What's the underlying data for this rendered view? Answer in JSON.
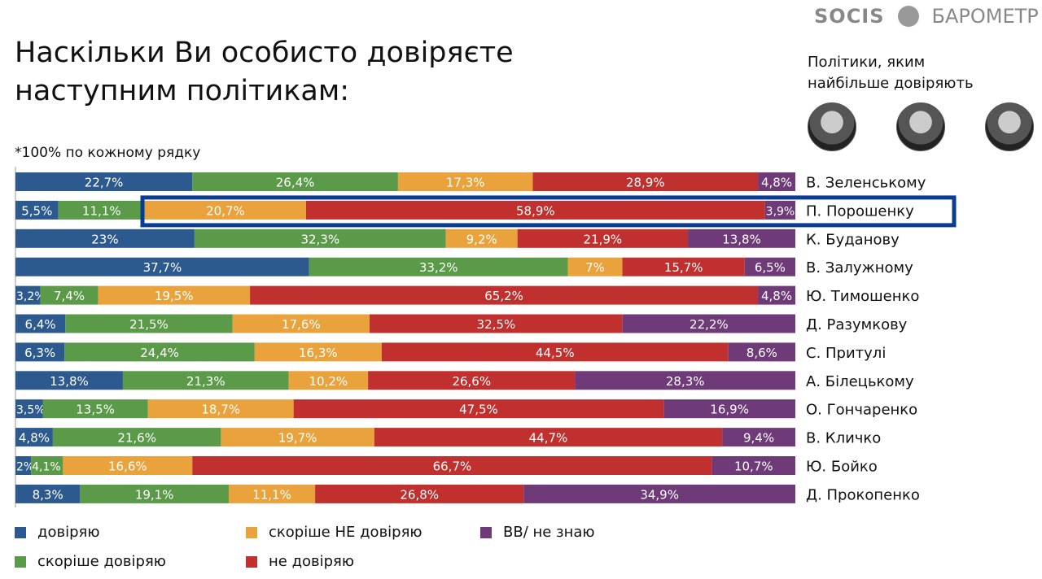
{
  "header": {
    "title": "Наскільки Ви особисто довіряєте наступним політикам:",
    "note": "*100% по кожному рядку",
    "logo_left": "SOCIS",
    "logo_right": "БАРОМЕТР"
  },
  "sidebar": {
    "title": "Політики, яким найбільше довіряють",
    "avatars": [
      "portrait-1",
      "portrait-2",
      "portrait-3"
    ]
  },
  "colors": {
    "trust": "#2d5a8e",
    "rather_trust": "#5a9a48",
    "rather_not": "#eaa33c",
    "not_trust": "#c0302f",
    "dk": "#6e3a78",
    "highlight": "#0a3d91"
  },
  "chart_data": {
    "type": "bar",
    "orientation": "horizontal-stacked-100",
    "categories": [
      "В. Зеленському",
      "П. Порошенку",
      "К. Буданову",
      "В. Залужному",
      "Ю. Тимошенко",
      "Д. Разумкову",
      "С. Притулі",
      "А. Білецькому",
      "О. Гончаренко",
      "В. Кличко",
      "Ю. Бойко",
      "Д. Прокопенко"
    ],
    "highlighted_category": "П. Порошенку",
    "series": [
      {
        "name": "довіряю",
        "values": [
          22.7,
          5.5,
          23,
          37.7,
          3.2,
          6.4,
          6.3,
          13.8,
          3.5,
          4.8,
          2,
          8.3
        ],
        "labels": [
          "22,7%",
          "5,5%",
          "23%",
          "37,7%",
          "3,2%",
          "6,4%",
          "6,3%",
          "13,8%",
          "3,5%",
          "4,8%",
          "2%",
          "8,3%"
        ]
      },
      {
        "name": "скоріше довіряю",
        "values": [
          26.4,
          11.1,
          32.3,
          33.2,
          7.4,
          21.5,
          24.4,
          21.3,
          13.5,
          21.6,
          4.1,
          19.1
        ],
        "labels": [
          "26,4%",
          "11,1%",
          "32,3%",
          "33,2%",
          "7,4%",
          "21,5%",
          "24,4%",
          "21,3%",
          "13,5%",
          "21,6%",
          "4,1%",
          "19,1%"
        ]
      },
      {
        "name": "скоріше НЕ довіряю",
        "values": [
          17.3,
          20.7,
          9.2,
          7,
          19.5,
          17.6,
          16.3,
          10.2,
          18.7,
          19.7,
          16.6,
          11.1
        ],
        "labels": [
          "17,3%",
          "20,7%",
          "9,2%",
          "7%",
          "19,5%",
          "17,6%",
          "16,3%",
          "10,2%",
          "18,7%",
          "19,7%",
          "16,6%",
          "11,1%"
        ]
      },
      {
        "name": "не довіряю",
        "values": [
          28.9,
          58.9,
          21.9,
          15.7,
          65.2,
          32.5,
          44.5,
          26.6,
          47.5,
          44.7,
          66.7,
          26.8
        ],
        "labels": [
          "28,9%",
          "58,9%",
          "21,9%",
          "15,7%",
          "65,2%",
          "32,5%",
          "44,5%",
          "26,6%",
          "47,5%",
          "44,7%",
          "66,7%",
          "26,8%"
        ]
      },
      {
        "name": "ВВ/ не знаю",
        "values": [
          4.8,
          3.9,
          13.8,
          6.5,
          4.8,
          22.2,
          8.6,
          28.3,
          16.9,
          9.4,
          10.7,
          34.9
        ],
        "labels": [
          "4,8%",
          "3,9%",
          "13,8%",
          "6,5%",
          "4,8%",
          "22,2%",
          "8,6%",
          "28,3%",
          "16,9%",
          "9,4%",
          "10,7%",
          "34,9%"
        ]
      }
    ],
    "xlim": [
      0,
      100
    ],
    "legend_position": "bottom"
  }
}
